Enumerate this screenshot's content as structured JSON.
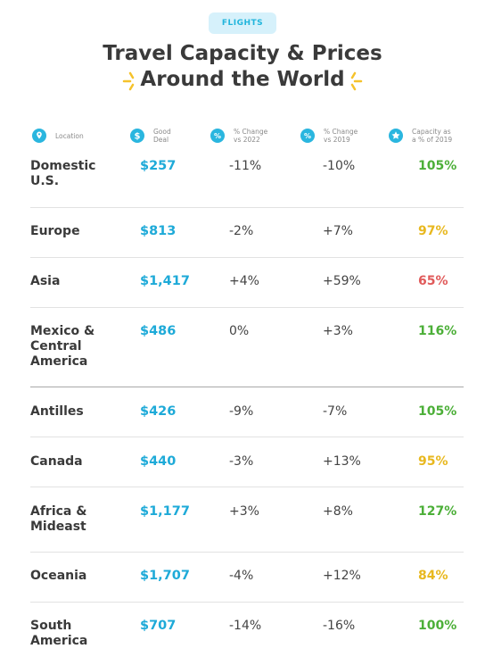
{
  "badge": "FLIGHTS",
  "title_line1": "Travel Capacity & Prices",
  "title_line2": "Around the World",
  "colors": {
    "accent": "#1eaad8",
    "good": "#4caf38",
    "mid": "#e8b81f",
    "low": "#e05a5a"
  },
  "headers": [
    {
      "icon": "location-pin-icon",
      "label": "Location"
    },
    {
      "icon": "dollar-icon",
      "label": "Good\nDeal"
    },
    {
      "icon": "percent-icon",
      "label": "% Change\nvs 2022"
    },
    {
      "icon": "percent-icon",
      "label": "% Change\nvs 2019"
    },
    {
      "icon": "star-icon",
      "label": "Capacity as\na % of 2019"
    }
  ],
  "chart_data": {
    "type": "table",
    "columns": [
      "Location",
      "Good Deal",
      "% Change vs 2022",
      "% Change vs 2019",
      "Capacity as a % of 2019"
    ],
    "rows": [
      {
        "location": "Domestic\nU.S.",
        "deal": "$257",
        "vs2022": "-11%",
        "vs2019": "-10%",
        "capacity": "105%",
        "cap_color": "good"
      },
      {
        "location": "Europe",
        "deal": "$813",
        "vs2022": "-2%",
        "vs2019": "+7%",
        "capacity": "97%",
        "cap_color": "mid"
      },
      {
        "location": "Asia",
        "deal": "$1,417",
        "vs2022": "+4%",
        "vs2019": "+59%",
        "capacity": "65%",
        "cap_color": "low"
      },
      {
        "location": "Mexico &\nCentral\nAmerica",
        "deal": "$486",
        "vs2022": "0%",
        "vs2019": "+3%",
        "capacity": "116%",
        "cap_color": "good"
      },
      {
        "location": "Antilles",
        "deal": "$426",
        "vs2022": "-9%",
        "vs2019": "-7%",
        "capacity": "105%",
        "cap_color": "good"
      },
      {
        "location": "Canada",
        "deal": "$440",
        "vs2022": "-3%",
        "vs2019": "+13%",
        "capacity": "95%",
        "cap_color": "mid"
      },
      {
        "location": "Africa &\nMideast",
        "deal": "$1,177",
        "vs2022": "+3%",
        "vs2019": "+8%",
        "capacity": "127%",
        "cap_color": "good"
      },
      {
        "location": "Oceania",
        "deal": "$1,707",
        "vs2022": "-4%",
        "vs2019": "+12%",
        "capacity": "84%",
        "cap_color": "mid"
      },
      {
        "location": "South\nAmerica",
        "deal": "$707",
        "vs2022": "-14%",
        "vs2019": "-16%",
        "capacity": "100%",
        "cap_color": "good"
      }
    ]
  }
}
